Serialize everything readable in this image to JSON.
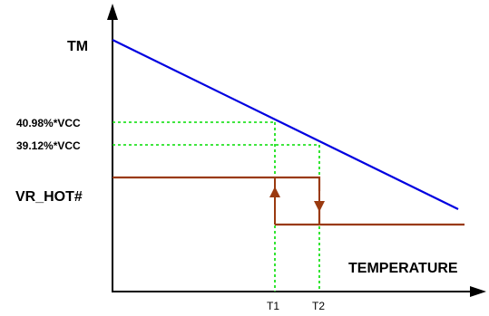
{
  "labels": {
    "tm": "TM",
    "vr_hot": "VR_HOT#",
    "temperature": "TEMPERATURE",
    "v_high": "40.98%*VCC",
    "v_low": "39.12%*VCC",
    "t1": "T1",
    "t2": "T2"
  },
  "colors": {
    "tm_line": "#0000e0",
    "vr_hot_line": "#9a3a10",
    "guide_line": "#00dd00",
    "axis": "#000000"
  }
}
